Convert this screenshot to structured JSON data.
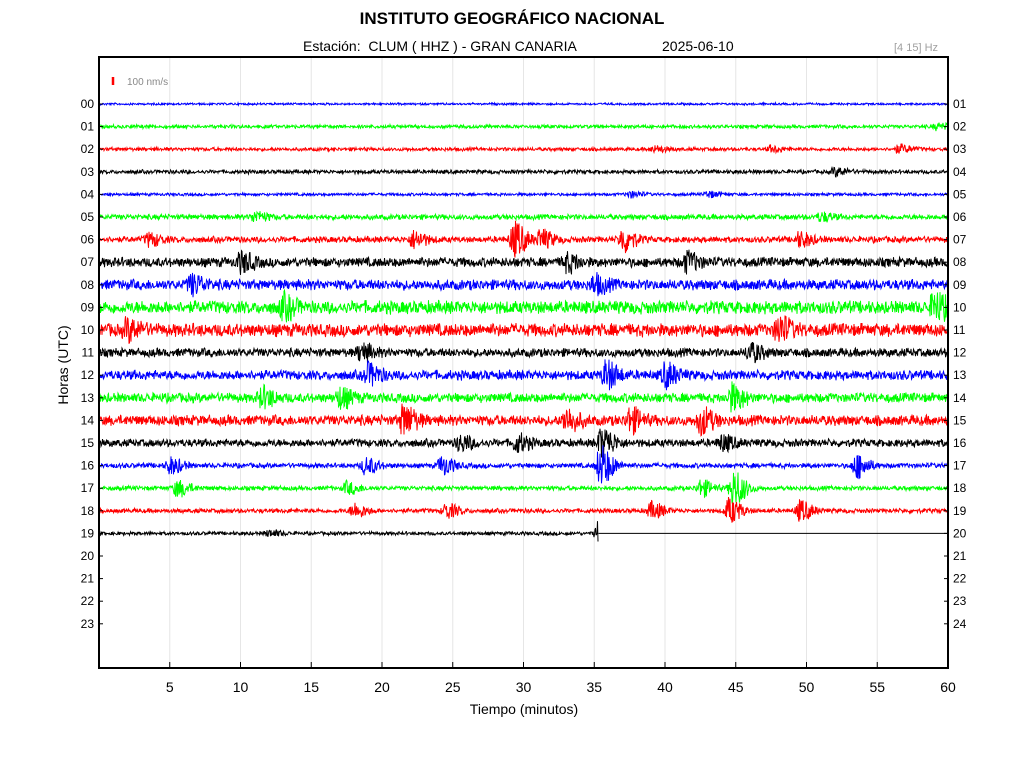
{
  "chart_data": {
    "type": "line",
    "title": "INSTITUTO GEOGRÁFICO NACIONAL",
    "station_label": "Estación:  CLUM ( HHZ ) - GRAN CANARIA",
    "date": "2025-06-10",
    "filter_band": "[4 15] Hz",
    "scale_label": "100 nm/s",
    "xlabel": "Tiempo (minutos)",
    "ylabel": "Horas (UTC)",
    "xlim": [
      0,
      60
    ],
    "x_ticks": [
      5,
      10,
      15,
      20,
      25,
      30,
      35,
      40,
      45,
      50,
      55,
      60
    ],
    "left_labels": [
      "00",
      "01",
      "02",
      "03",
      "04",
      "05",
      "06",
      "07",
      "08",
      "09",
      "10",
      "11",
      "12",
      "13",
      "14",
      "15",
      "16",
      "17",
      "18",
      "19",
      "20",
      "21",
      "22",
      "23"
    ],
    "right_labels": [
      "01",
      "02",
      "03",
      "04",
      "05",
      "06",
      "07",
      "08",
      "09",
      "10",
      "11",
      "12",
      "13",
      "14",
      "15",
      "16",
      "17",
      "18",
      "19",
      "20",
      "21",
      "22",
      "23",
      "24"
    ],
    "grid": true,
    "colors": [
      "#0000ff",
      "#00ff00",
      "#ff0000",
      "#000000"
    ],
    "scale_color": "#ff0000",
    "traces": [
      {
        "hour": "00",
        "color": "#0000ff",
        "amplitude": 1.2,
        "end_minute": 60,
        "events": []
      },
      {
        "hour": "01",
        "color": "#00ff00",
        "amplitude": 2.0,
        "end_minute": 60,
        "events": [
          {
            "t": 59.2,
            "a": 3
          }
        ]
      },
      {
        "hour": "02",
        "color": "#ff0000",
        "amplitude": 2.0,
        "end_minute": 60,
        "events": [
          {
            "t": 39.2,
            "a": 3
          },
          {
            "t": 47.5,
            "a": 3
          },
          {
            "t": 56.5,
            "a": 4
          }
        ]
      },
      {
        "hour": "03",
        "color": "#000000",
        "amplitude": 2.2,
        "end_minute": 60,
        "events": [
          {
            "t": 52.0,
            "a": 4
          }
        ]
      },
      {
        "hour": "04",
        "color": "#0000ff",
        "amplitude": 1.6,
        "end_minute": 60,
        "events": [
          {
            "t": 37.5,
            "a": 3
          },
          {
            "t": 43.0,
            "a": 3
          }
        ]
      },
      {
        "hour": "05",
        "color": "#00ff00",
        "amplitude": 3.0,
        "end_minute": 60,
        "events": [
          {
            "t": 11.0,
            "a": 5
          },
          {
            "t": 51.0,
            "a": 4
          }
        ]
      },
      {
        "hour": "06",
        "color": "#ff0000",
        "amplitude": 3.5,
        "end_minute": 60,
        "events": [
          {
            "t": 3.5,
            "a": 6
          },
          {
            "t": 22.2,
            "a": 8
          },
          {
            "t": 29.3,
            "a": 17
          },
          {
            "t": 31.2,
            "a": 9
          },
          {
            "t": 37.0,
            "a": 12
          },
          {
            "t": 49.5,
            "a": 7
          }
        ]
      },
      {
        "hour": "07",
        "color": "#000000",
        "amplitude": 5.5,
        "end_minute": 60,
        "events": [
          {
            "t": 10.0,
            "a": 9
          },
          {
            "t": 33.0,
            "a": 8
          },
          {
            "t": 41.5,
            "a": 9
          }
        ]
      },
      {
        "hour": "08",
        "color": "#0000ff",
        "amplitude": 6.0,
        "end_minute": 60,
        "events": [
          {
            "t": 6.5,
            "a": 9
          },
          {
            "t": 35.0,
            "a": 8
          }
        ]
      },
      {
        "hour": "09",
        "color": "#00ff00",
        "amplitude": 7.5,
        "end_minute": 60,
        "events": [
          {
            "t": 13.0,
            "a": 10
          },
          {
            "t": 59.0,
            "a": 13
          }
        ]
      },
      {
        "hour": "10",
        "color": "#ff0000",
        "amplitude": 7.5,
        "end_minute": 60,
        "events": [
          {
            "t": 2.0,
            "a": 9
          },
          {
            "t": 48.0,
            "a": 12
          }
        ]
      },
      {
        "hour": "11",
        "color": "#000000",
        "amplitude": 5.0,
        "end_minute": 60,
        "events": [
          {
            "t": 18.5,
            "a": 8
          },
          {
            "t": 46.0,
            "a": 8
          }
        ]
      },
      {
        "hour": "12",
        "color": "#0000ff",
        "amplitude": 5.5,
        "end_minute": 60,
        "events": [
          {
            "t": 19.0,
            "a": 10
          },
          {
            "t": 35.8,
            "a": 13
          },
          {
            "t": 40.0,
            "a": 11
          }
        ]
      },
      {
        "hour": "13",
        "color": "#00ff00",
        "amplitude": 5.5,
        "end_minute": 60,
        "events": [
          {
            "t": 11.5,
            "a": 9
          },
          {
            "t": 17.0,
            "a": 9
          },
          {
            "t": 44.7,
            "a": 12
          }
        ]
      },
      {
        "hour": "14",
        "color": "#ff0000",
        "amplitude": 6.0,
        "end_minute": 60,
        "events": [
          {
            "t": 21.5,
            "a": 14
          },
          {
            "t": 33.0,
            "a": 11
          },
          {
            "t": 37.5,
            "a": 11
          },
          {
            "t": 42.5,
            "a": 12
          }
        ]
      },
      {
        "hour": "15",
        "color": "#000000",
        "amplitude": 4.5,
        "end_minute": 60,
        "events": [
          {
            "t": 25.5,
            "a": 7
          },
          {
            "t": 29.5,
            "a": 8
          },
          {
            "t": 35.5,
            "a": 15
          },
          {
            "t": 44.0,
            "a": 7
          }
        ]
      },
      {
        "hour": "16",
        "color": "#0000ff",
        "amplitude": 2.8,
        "end_minute": 60,
        "events": [
          {
            "t": 5.0,
            "a": 8
          },
          {
            "t": 18.8,
            "a": 8
          },
          {
            "t": 24.2,
            "a": 9
          },
          {
            "t": 35.4,
            "a": 20
          },
          {
            "t": 53.5,
            "a": 12
          }
        ]
      },
      {
        "hour": "17",
        "color": "#00ff00",
        "amplitude": 2.5,
        "end_minute": 60,
        "events": [
          {
            "t": 5.5,
            "a": 8
          },
          {
            "t": 17.5,
            "a": 6
          },
          {
            "t": 42.5,
            "a": 8
          },
          {
            "t": 44.8,
            "a": 18
          }
        ]
      },
      {
        "hour": "18",
        "color": "#ff0000",
        "amplitude": 2.5,
        "end_minute": 60,
        "events": [
          {
            "t": 18.0,
            "a": 7
          },
          {
            "t": 24.5,
            "a": 7
          },
          {
            "t": 39.0,
            "a": 8
          },
          {
            "t": 44.5,
            "a": 12
          },
          {
            "t": 49.5,
            "a": 10
          }
        ]
      },
      {
        "hour": "19",
        "color": "#000000",
        "amplitude": 2.0,
        "end_minute": 35.3,
        "events": [
          {
            "t": 12.0,
            "a": 3
          },
          {
            "t": 35.3,
            "a": 12
          }
        ]
      }
    ]
  }
}
